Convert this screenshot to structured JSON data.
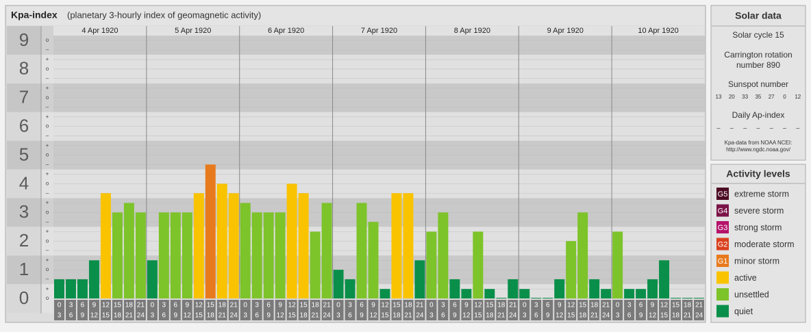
{
  "chart_data": {
    "type": "bar",
    "title": "Kpa-index",
    "subtitle": "(planetary 3-hourly index of geomagnetic activity)",
    "ylim": [
      0,
      9.5
    ],
    "yticks": [
      0,
      1,
      2,
      3,
      4,
      5,
      6,
      7,
      8,
      9
    ],
    "yticks_minor": [
      {
        "value": 0,
        "label": "o"
      },
      {
        "value": 0.33,
        "label": "+"
      },
      {
        "value": 0.67,
        "label": "–"
      },
      {
        "value": 1,
        "label": "o"
      },
      {
        "value": 1.33,
        "label": "+"
      },
      {
        "value": 1.67,
        "label": "–"
      },
      {
        "value": 2,
        "label": "o"
      },
      {
        "value": 2.33,
        "label": "+"
      },
      {
        "value": 2.67,
        "label": "–"
      },
      {
        "value": 3,
        "label": "o"
      },
      {
        "value": 3.33,
        "label": "+"
      },
      {
        "value": 3.67,
        "label": "–"
      },
      {
        "value": 4,
        "label": "o"
      },
      {
        "value": 4.33,
        "label": "+"
      },
      {
        "value": 4.67,
        "label": "–"
      },
      {
        "value": 5,
        "label": "o"
      },
      {
        "value": 5.33,
        "label": "+"
      },
      {
        "value": 5.67,
        "label": "–"
      },
      {
        "value": 6,
        "label": "o"
      },
      {
        "value": 6.33,
        "label": "+"
      },
      {
        "value": 6.67,
        "label": "–"
      },
      {
        "value": 7,
        "label": "o"
      },
      {
        "value": 7.33,
        "label": "+"
      },
      {
        "value": 7.67,
        "label": "–"
      },
      {
        "value": 8,
        "label": "o"
      },
      {
        "value": 8.33,
        "label": "+"
      },
      {
        "value": 8.67,
        "label": "–"
      },
      {
        "value": 9,
        "label": "o"
      }
    ],
    "hour_start": [
      0,
      3,
      6,
      9,
      12,
      15,
      18,
      21
    ],
    "hour_end": [
      3,
      6,
      9,
      12,
      15,
      18,
      21,
      24
    ],
    "series": [
      {
        "name": "4 Apr 1920",
        "values": [
          0.67,
          0.67,
          0.67,
          1.33,
          3.67,
          3,
          3.33,
          3
        ],
        "colors": [
          "#0a8f4a",
          "#0a8f4a",
          "#0a8f4a",
          "#0a8f4a",
          "#f9c300",
          "#7dc32a",
          "#7dc32a",
          "#7dc32a"
        ]
      },
      {
        "name": "5 Apr 1920",
        "values": [
          1.33,
          3,
          3,
          3,
          3.67,
          4.67,
          4,
          3.67
        ],
        "colors": [
          "#0a8f4a",
          "#7dc32a",
          "#7dc32a",
          "#7dc32a",
          "#f9c300",
          "#e87a1e",
          "#f9c300",
          "#f9c300"
        ]
      },
      {
        "name": "6 Apr 1920",
        "values": [
          3.33,
          3,
          3,
          3,
          4,
          3.67,
          2.33,
          3.33
        ],
        "colors": [
          "#7dc32a",
          "#7dc32a",
          "#7dc32a",
          "#7dc32a",
          "#f9c300",
          "#f9c300",
          "#7dc32a",
          "#7dc32a"
        ]
      },
      {
        "name": "7 Apr 1920",
        "values": [
          1,
          0.67,
          3.33,
          2.67,
          0.33,
          3.67,
          3.67,
          1.33
        ],
        "colors": [
          "#0a8f4a",
          "#0a8f4a",
          "#7dc32a",
          "#7dc32a",
          "#0a8f4a",
          "#f9c300",
          "#f9c300",
          "#0a8f4a"
        ]
      },
      {
        "name": "8 Apr 1920",
        "values": [
          2.33,
          3,
          0.67,
          0.33,
          2.33,
          0.33,
          0,
          0.67
        ],
        "colors": [
          "#7dc32a",
          "#7dc32a",
          "#0a8f4a",
          "#0a8f4a",
          "#7dc32a",
          "#0a8f4a",
          "#0a8f4a",
          "#0a8f4a"
        ]
      },
      {
        "name": "9 Apr 1920",
        "values": [
          0.33,
          0,
          0,
          0.67,
          2,
          3,
          0.67,
          0.33
        ],
        "colors": [
          "#0a8f4a",
          "#0a8f4a",
          "#0a8f4a",
          "#0a8f4a",
          "#7dc32a",
          "#7dc32a",
          "#0a8f4a",
          "#0a8f4a"
        ]
      },
      {
        "name": "10 Apr 1920",
        "values": [
          2.33,
          0.33,
          0.33,
          0.67,
          1.33,
          0,
          0,
          0
        ],
        "colors": [
          "#7dc32a",
          "#0a8f4a",
          "#0a8f4a",
          "#0a8f4a",
          "#0a8f4a",
          "#0a8f4a",
          "#0a8f4a",
          "#0a8f4a"
        ]
      }
    ]
  },
  "solar_data": {
    "title": "Solar data",
    "cycle": "Solar cycle 15",
    "carrington": "Carrington rotation",
    "carrington_number": "number 890",
    "sunspot_title": "Sunspot number",
    "sunspots": [
      13,
      20,
      33,
      35,
      27,
      0,
      12
    ],
    "ap_title": "Daily Ap-index",
    "ap": [
      "–",
      "–",
      "–",
      "–",
      "–",
      "–",
      "–"
    ],
    "source": "Kpa-data from NOAA NCEI:",
    "source_url": "http://www.ngdc.noaa.gov/"
  },
  "activity_levels": {
    "title": "Activity levels",
    "items": [
      {
        "badge": "G5",
        "label": "extreme storm",
        "color": "#4d0a23"
      },
      {
        "badge": "G4",
        "label": "severe storm",
        "color": "#7a1448"
      },
      {
        "badge": "G3",
        "label": "strong storm",
        "color": "#b5146b"
      },
      {
        "badge": "G2",
        "label": "moderate storm",
        "color": "#d9401e"
      },
      {
        "badge": "G1",
        "label": "minor storm",
        "color": "#e87a1e"
      },
      {
        "label": "active",
        "color": "#f9c300"
      },
      {
        "label": "unsettled",
        "color": "#7dc32a"
      },
      {
        "label": "quiet",
        "color": "#0a8f4a"
      }
    ]
  }
}
